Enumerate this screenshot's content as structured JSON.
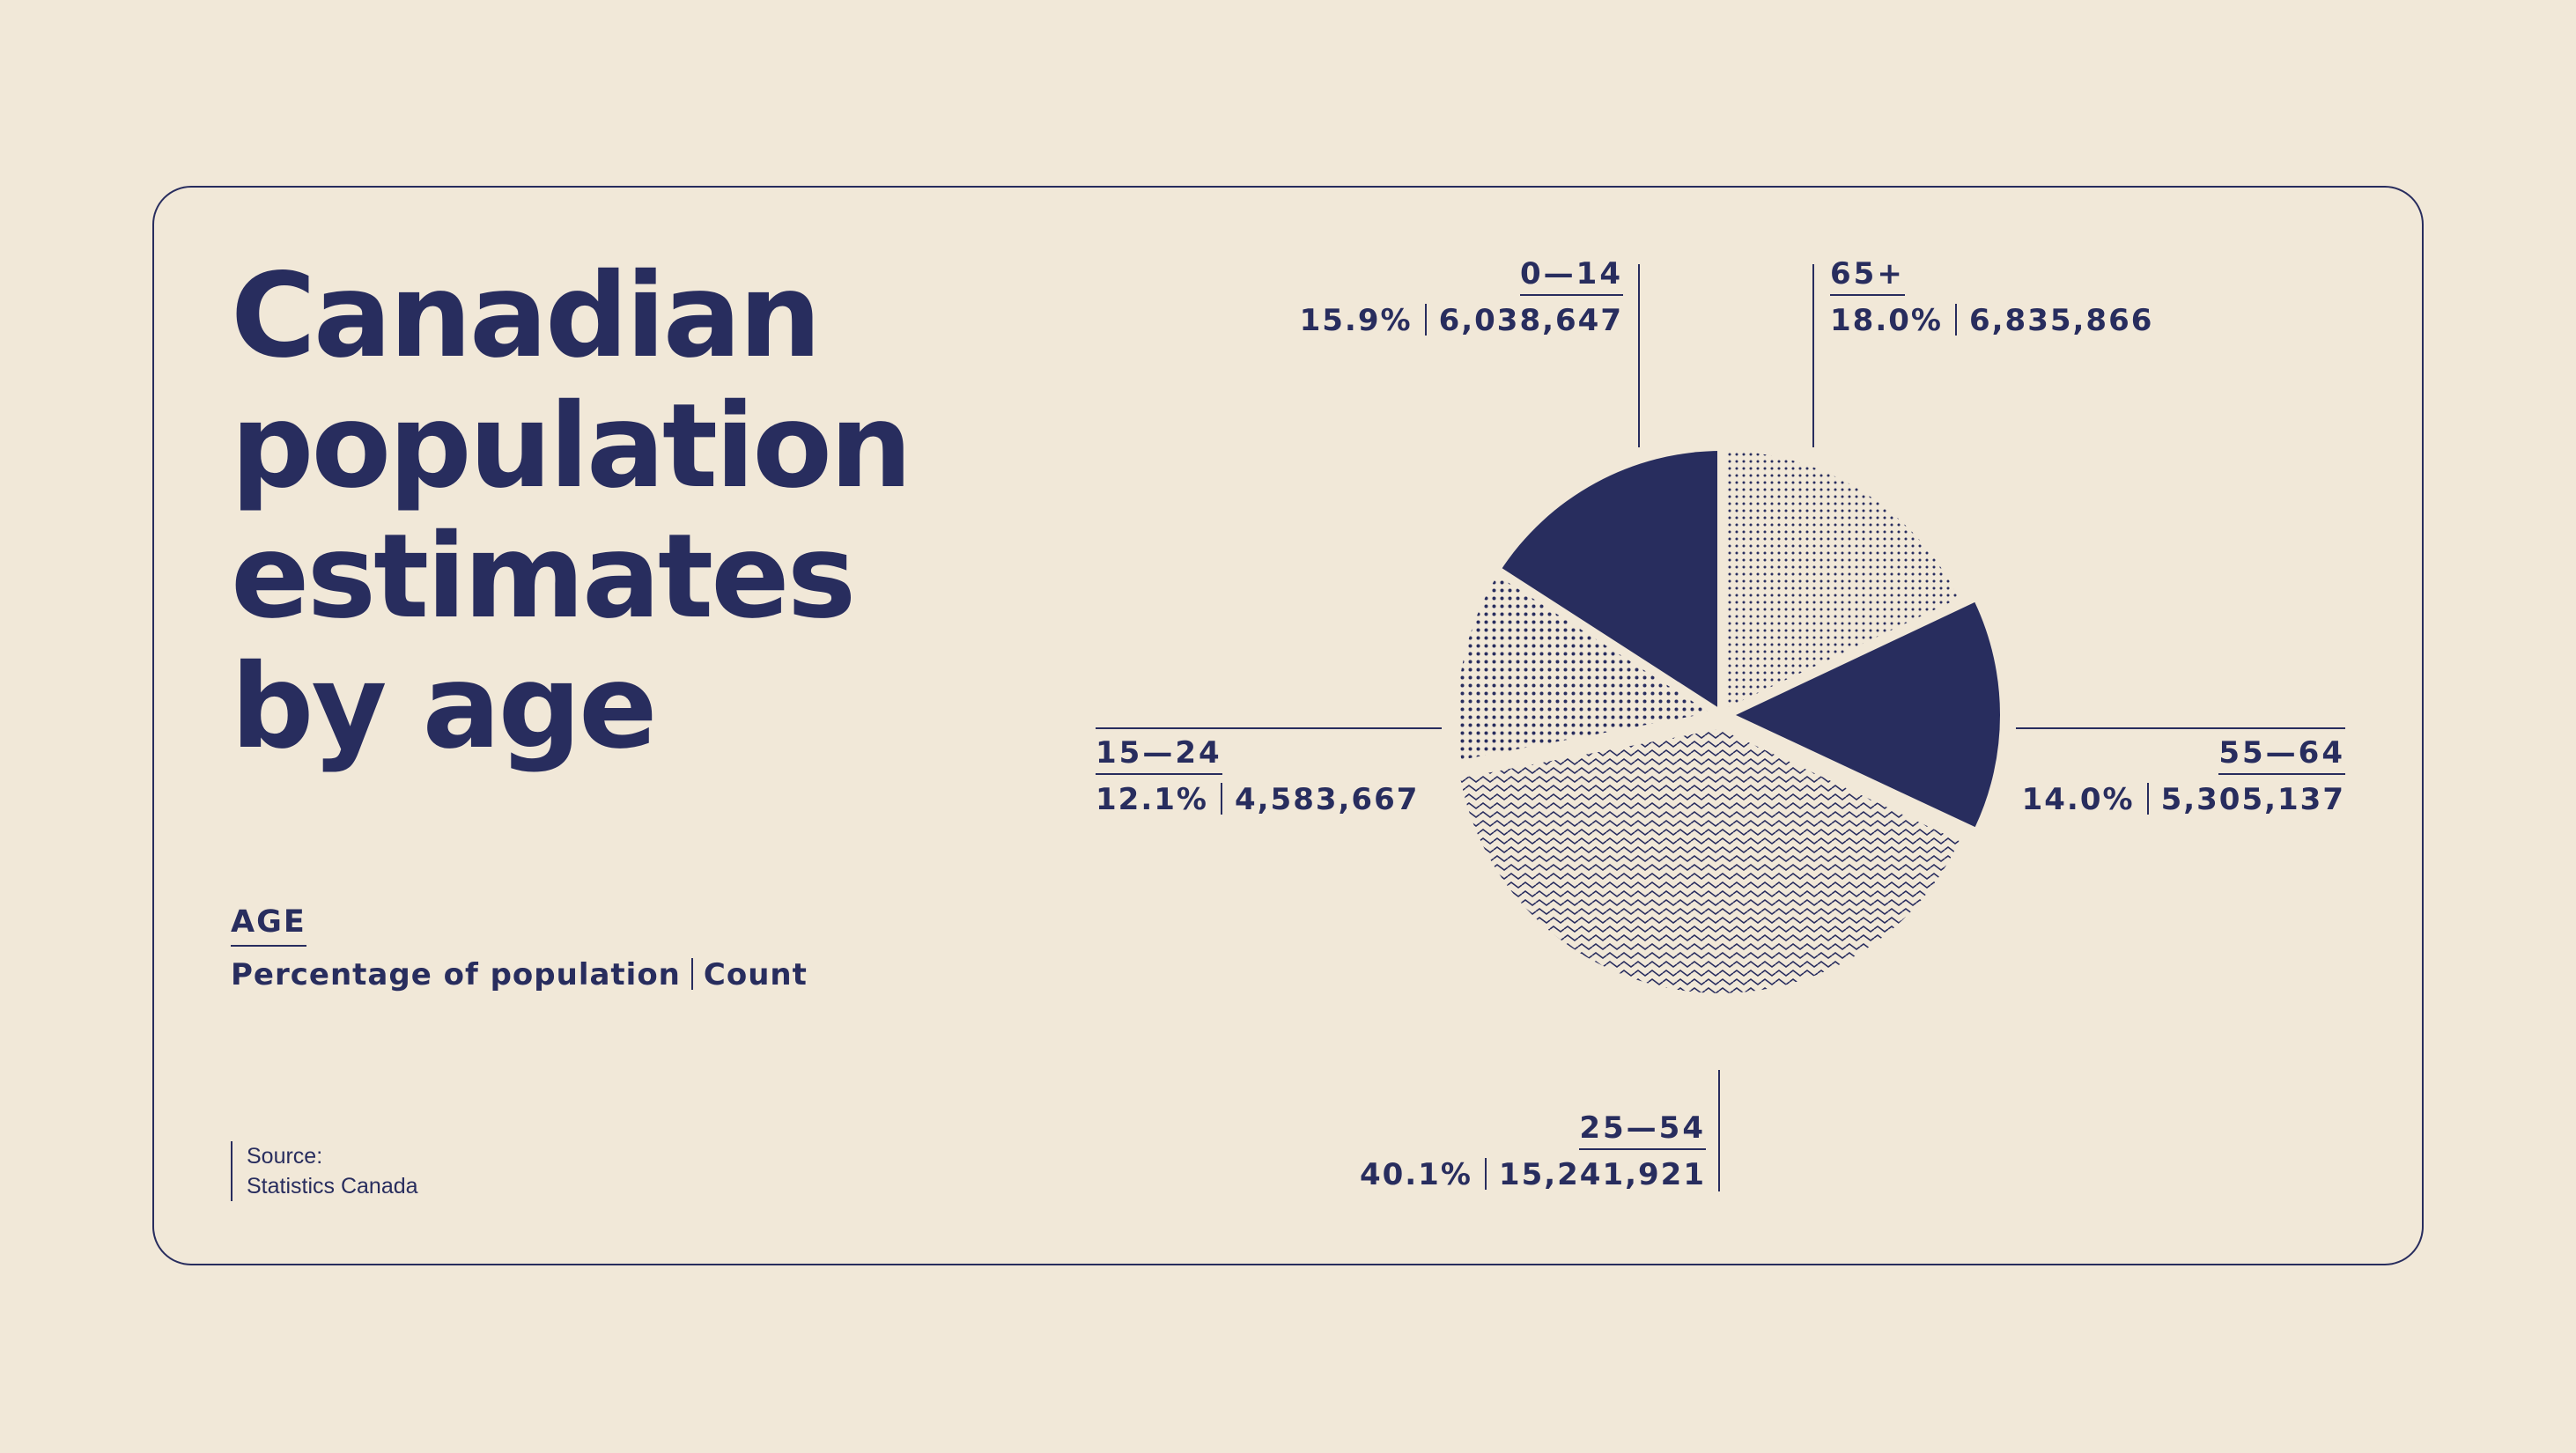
{
  "title_lines": [
    "Canadian",
    "population",
    "estimates",
    "by age"
  ],
  "key": {
    "heading": "AGE",
    "percent_label": "Percentage of population",
    "count_label": "Count"
  },
  "source": {
    "label": "Source:",
    "name": "Statistics Canada"
  },
  "colors": {
    "background": "#f1e8d8",
    "ink": "#282d5e"
  },
  "chart_data": {
    "type": "pie",
    "title": "Canadian population estimates by age",
    "start_angle_deg": 0,
    "direction": "clockwise",
    "slices": [
      {
        "label": "65+",
        "percent": "18.0%",
        "count": "6,835,866",
        "value": 18.0,
        "fill": "dots-fine"
      },
      {
        "label": "55—64",
        "percent": "14.0%",
        "count": "5,305,137",
        "value": 14.0,
        "fill": "solid",
        "exploded": true
      },
      {
        "label": "25—54",
        "percent": "40.1%",
        "count": "15,241,921",
        "value": 40.1,
        "fill": "waves",
        "exploded": true
      },
      {
        "label": "15—24",
        "percent": "12.1%",
        "count": "4,583,667",
        "value": 12.1,
        "fill": "dots"
      },
      {
        "label": "0—14",
        "percent": "15.9%",
        "count": "6,038,647",
        "value": 15.9,
        "fill": "solid"
      }
    ]
  }
}
